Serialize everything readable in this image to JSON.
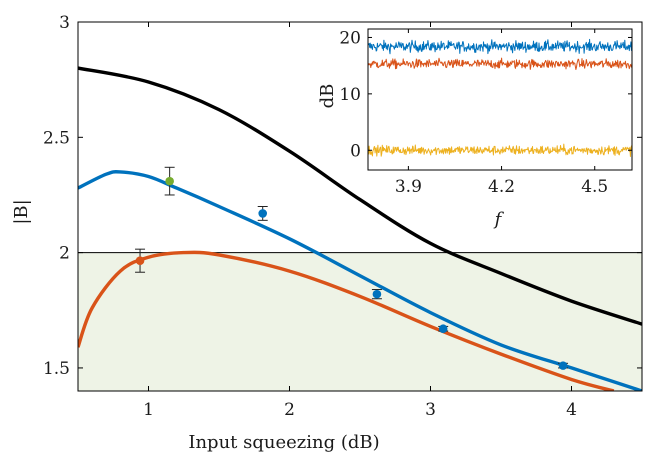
{
  "chart_data": [
    {
      "type": "line",
      "xlabel": "Input squeezing (dB)",
      "ylabel": "|B|",
      "xlim": [
        0.5,
        4.5
      ],
      "ylim": [
        1.4,
        3.0
      ],
      "xticks": [
        1,
        2,
        3,
        4
      ],
      "xtick_labels": [
        "1",
        "2",
        "3",
        "4"
      ],
      "yticks": [
        1.5,
        2,
        2.5,
        3
      ],
      "ytick_labels": [
        "1.5",
        "2",
        "2.5",
        "3"
      ],
      "grid": false,
      "legend": "none",
      "threshold": {
        "y": 2.0,
        "shaded": "below",
        "fill_color": "#eef3e6"
      },
      "series": [
        {
          "kind": "line",
          "color": "#000000",
          "x": [
            0.5,
            1.0,
            1.5,
            2.0,
            2.5,
            3.0,
            3.5,
            4.0,
            4.5
          ],
          "y": [
            2.8,
            2.74,
            2.62,
            2.44,
            2.23,
            2.04,
            1.91,
            1.79,
            1.69
          ]
        },
        {
          "kind": "line",
          "color": "#0072bd",
          "x": [
            0.5,
            0.7,
            0.8,
            1.0,
            1.2,
            1.5,
            2.0,
            2.5,
            3.0,
            3.5,
            4.0,
            4.5
          ],
          "y": [
            2.28,
            2.34,
            2.35,
            2.33,
            2.28,
            2.2,
            2.06,
            1.9,
            1.74,
            1.6,
            1.5,
            1.4
          ]
        },
        {
          "kind": "line",
          "color": "#d95319",
          "x": [
            0.5,
            0.6,
            0.8,
            1.0,
            1.25,
            1.5,
            2.0,
            2.5,
            3.0,
            3.5,
            4.0,
            4.3
          ],
          "y": [
            1.59,
            1.76,
            1.92,
            1.98,
            2.0,
            1.99,
            1.92,
            1.81,
            1.68,
            1.56,
            1.45,
            1.4
          ]
        },
        {
          "kind": "points",
          "color": "#0072bd",
          "x": [
            1.81,
            2.62,
            3.09,
            3.94
          ],
          "y": [
            2.17,
            1.82,
            1.67,
            1.51
          ],
          "err": [
            0.03,
            0.02,
            0.01,
            0.01
          ]
        },
        {
          "kind": "points",
          "color": "#77ac30",
          "x": [
            1.15
          ],
          "y": [
            2.31
          ],
          "err": [
            0.06
          ]
        },
        {
          "kind": "points",
          "color": "#d95319",
          "x": [
            0.94
          ],
          "y": [
            1.965
          ],
          "err": [
            0.05
          ]
        }
      ]
    },
    {
      "type": "line",
      "inset": true,
      "xlabel": "f",
      "ylabel": "dB",
      "xlim": [
        3.77,
        4.62
      ],
      "ylim": [
        -3.5,
        21.5
      ],
      "xticks": [
        3.9,
        4.2,
        4.5
      ],
      "xtick_labels": [
        "3.9",
        "4.2",
        "4.5"
      ],
      "yticks": [
        0,
        10,
        20
      ],
      "ytick_labels": [
        "0",
        "10",
        "20"
      ],
      "grid": false,
      "series": [
        {
          "kind": "noisy-trace",
          "color": "#0072bd",
          "mean": 18.4,
          "noise": 0.7
        },
        {
          "kind": "noisy-trace",
          "color": "#d95319",
          "mean": 15.3,
          "noise": 0.6
        },
        {
          "kind": "noisy-trace",
          "color": "#edb120",
          "mean": 0.0,
          "noise": 0.6
        }
      ]
    }
  ]
}
